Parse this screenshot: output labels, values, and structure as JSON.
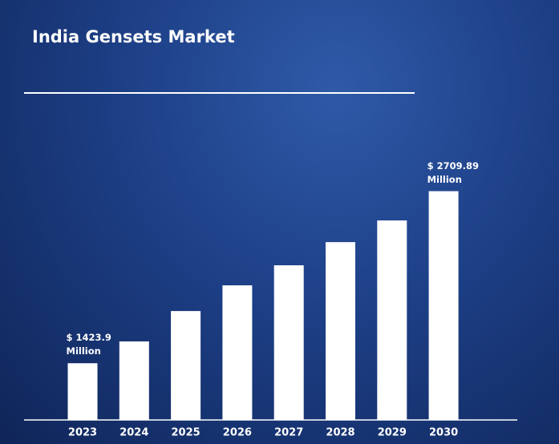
{
  "chart_data": {
    "type": "bar",
    "title": "India Gensets Market",
    "categories": [
      "2023",
      "2024",
      "2025",
      "2026",
      "2027",
      "2028",
      "2029",
      "2030"
    ],
    "values": [
      1423.9,
      1587,
      1814,
      2006,
      2156,
      2329,
      2491,
      2709.89
    ],
    "value_labels": [
      "$ 1423.9 Million",
      null,
      null,
      null,
      null,
      null,
      null,
      "$ 2709.89 Million"
    ],
    "color": "#ffffff",
    "ylim": [
      1000,
      3300
    ]
  }
}
